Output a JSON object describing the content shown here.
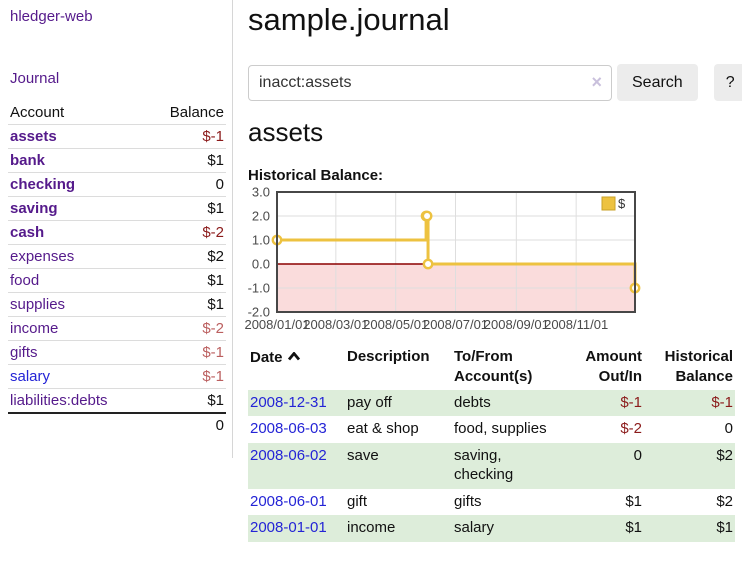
{
  "app": {
    "title": "hledger-web"
  },
  "colors": {
    "accent_purple": "#551a8b",
    "link_blue": "#2424d6",
    "negative_strong": "#8b1a1a",
    "negative_soft": "#bb5f5f",
    "row_green": "#ddedda",
    "button_gray": "#ececec",
    "series_gold": "#edc240"
  },
  "sidebar": {
    "journal_link": "Journal",
    "table": {
      "headers": [
        "Account",
        "Balance"
      ],
      "rows": [
        {
          "account": "assets",
          "balance": "$-1",
          "indent": 1,
          "emphasis": true
        },
        {
          "account": "bank",
          "balance": "$1",
          "indent": 2,
          "emphasis": true
        },
        {
          "account": "checking",
          "balance": "0",
          "indent": 3,
          "emphasis": true
        },
        {
          "account": "saving",
          "balance": "$1",
          "indent": 3,
          "emphasis": true
        },
        {
          "account": "cash",
          "balance": "$-2",
          "indent": 2,
          "emphasis": true
        },
        {
          "account": "expenses",
          "balance": "$2",
          "indent": 1,
          "emphasis": false
        },
        {
          "account": "food",
          "balance": "$1",
          "indent": 2,
          "emphasis": false
        },
        {
          "account": "supplies",
          "balance": "$1",
          "indent": 2,
          "emphasis": false
        },
        {
          "account": "income",
          "balance": "$-2",
          "indent": 1,
          "emphasis": false
        },
        {
          "account": "gifts",
          "balance": "$-1",
          "indent": 2,
          "emphasis": false
        },
        {
          "account": "salary",
          "balance": "$-1",
          "indent": 2,
          "emphasis": false
        },
        {
          "account": "liabilities:debts",
          "balance": "$1",
          "indent": 1,
          "emphasis": false
        }
      ],
      "total": "0"
    }
  },
  "main": {
    "title": "sample.journal",
    "search": {
      "value": "inacct:assets",
      "clear_icon": "×",
      "button_label": "Search",
      "help_label": "?"
    },
    "account_heading": "assets",
    "chart_label": "Historical Balance:"
  },
  "chart_data": {
    "type": "line",
    "subtype": "step",
    "title": "Historical Balance",
    "xlim_days": [
      0,
      365
    ],
    "ylim": [
      -2,
      3
    ],
    "grid": true,
    "legend_position": "top-right",
    "yticks": [
      {
        "v": 3,
        "label": "3.0"
      },
      {
        "v": 2,
        "label": "2.0"
      },
      {
        "v": 1,
        "label": "1.0"
      },
      {
        "v": 0,
        "label": "0.0"
      },
      {
        "v": -1,
        "label": "-1.0"
      },
      {
        "v": -2,
        "label": "-2.0"
      }
    ],
    "xticks": [
      {
        "day": 0,
        "label": "2008/01/01"
      },
      {
        "day": 60,
        "label": "2008/03/01"
      },
      {
        "day": 121,
        "label": "2008/05/01"
      },
      {
        "day": 182,
        "label": "2008/07/01"
      },
      {
        "day": 244,
        "label": "2008/09/01"
      },
      {
        "day": 305,
        "label": "2008/11/01"
      }
    ],
    "series": [
      {
        "name": "$",
        "color": "#edc240",
        "points": [
          {
            "day": 0,
            "date": "2008-01-01",
            "value": 1
          },
          {
            "day": 152,
            "date": "2008-06-01",
            "value": 2
          },
          {
            "day": 153,
            "date": "2008-06-02",
            "value": 2
          },
          {
            "day": 154,
            "date": "2008-06-03",
            "value": 0
          },
          {
            "day": 365,
            "date": "2008-12-31",
            "value": -1
          }
        ]
      }
    ],
    "colors": {
      "below_zero_fill": "#fadcdc",
      "zero_line": "#8b0000",
      "grid_line": "#dedede",
      "chart_border": "#474747",
      "tick_text": "#4a4a4a",
      "marker_fill": "#ffffff",
      "legend_swatch_border": "#c9a227"
    }
  },
  "register": {
    "headers": [
      "Date",
      "Description",
      "To/From Account(s)",
      "Amount Out/In",
      "Historical Balance"
    ],
    "sort": {
      "column": "Date",
      "direction": "ascending"
    },
    "rows": [
      {
        "date": "2008-12-31",
        "description": "pay off",
        "accounts": "debts",
        "amount": "$-1",
        "balance": "$-1"
      },
      {
        "date": "2008-06-03",
        "description": "eat & shop",
        "accounts": "food, supplies",
        "amount": "$-2",
        "balance": "0"
      },
      {
        "date": "2008-06-02",
        "description": "save",
        "accounts": "saving, checking",
        "amount": "0",
        "balance": "$2"
      },
      {
        "date": "2008-06-01",
        "description": "gift",
        "accounts": "gifts",
        "amount": "$1",
        "balance": "$2"
      },
      {
        "date": "2008-01-01",
        "description": "income",
        "accounts": "salary",
        "amount": "$1",
        "balance": "$1"
      }
    ]
  }
}
